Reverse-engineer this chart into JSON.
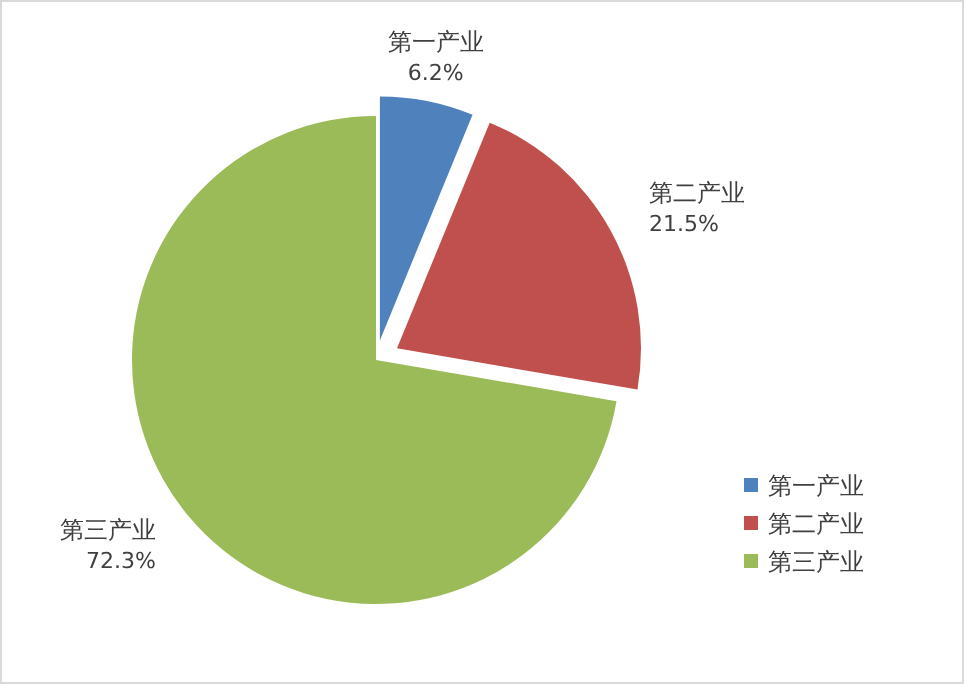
{
  "chart_data": {
    "type": "pie",
    "categories": [
      "第一产业",
      "第二产业",
      "第三产业"
    ],
    "values": [
      6.2,
      21.5,
      72.3
    ],
    "colors": [
      "#4f81bd",
      "#c0504d",
      "#9bbb59"
    ],
    "value_labels": [
      "6.2%",
      "21.5%",
      "72.3%"
    ],
    "legend": "right"
  }
}
